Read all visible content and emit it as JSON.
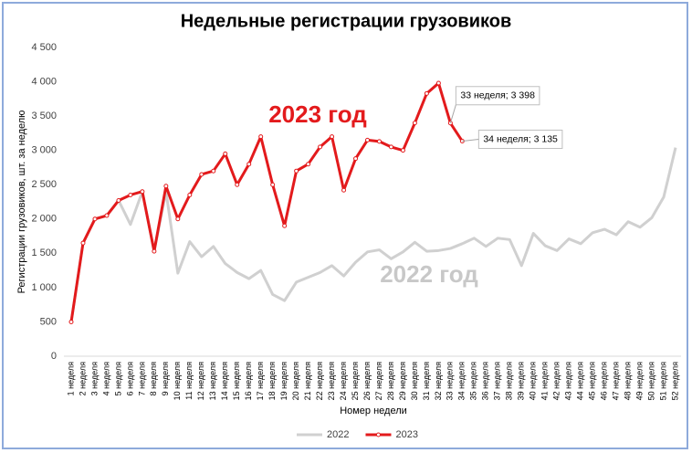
{
  "chart_data": {
    "type": "line",
    "title": "Недельные регистрации грузовиков",
    "y_label": "Регистрации грузовиков, шт. за неделю",
    "x_label": "Номер недели",
    "annotations": [
      {
        "text": "2023 год",
        "color": "#e31a1c"
      },
      {
        "text": "2022 год",
        "color": "#c8c8c8"
      }
    ],
    "categories": [
      "1 неделя",
      "2 неделя",
      "3 неделя",
      "4 неделя",
      "5 неделя",
      "6 неделя",
      "7 неделя",
      "8 неделя",
      "9 неделя",
      "10 неделя",
      "11 неделя",
      "12 неделя",
      "13 неделя",
      "14 неделя",
      "15 неделя",
      "16 неделя",
      "17 неделя",
      "18 неделя",
      "19 неделя",
      "20 неделя",
      "21 неделя",
      "22 неделя",
      "23 неделя",
      "24 неделя",
      "25 неделя",
      "26 неделя",
      "27 неделя",
      "28 неделя",
      "29 неделя",
      "30 неделя",
      "31 неделя",
      "32 неделя",
      "33 неделя",
      "34 неделя",
      "35 неделя",
      "36 неделя",
      "37 неделя",
      "38 неделя",
      "39 неделя",
      "40 неделя",
      "41 неделя",
      "42 неделя",
      "43 неделя",
      "44 неделя",
      "45 неделя",
      "46 неделя",
      "47 неделя",
      "48 неделя",
      "49 неделя",
      "50 неделя",
      "51 неделя",
      "52 неделя"
    ],
    "series": [
      {
        "name": "2022",
        "color": "#d0d0d0",
        "markers": false,
        "values": [
          500,
          1650,
          2000,
          2050,
          2270,
          1920,
          2400,
          1530,
          2400,
          1210,
          1670,
          1450,
          1600,
          1350,
          1220,
          1130,
          1250,
          900,
          810,
          1080,
          1150,
          1220,
          1320,
          1170,
          1370,
          1520,
          1550,
          1420,
          1520,
          1660,
          1530,
          1540,
          1570,
          1640,
          1720,
          1600,
          1720,
          1700,
          1320,
          1790,
          1610,
          1540,
          1710,
          1640,
          1800,
          1850,
          1770,
          1960,
          1880,
          2020,
          2320,
          3040
        ]
      },
      {
        "name": "2023",
        "color": "#e31a1c",
        "markers": true,
        "values": [
          500,
          1650,
          2000,
          2050,
          2270,
          2350,
          2400,
          1530,
          2480,
          2000,
          2350,
          2650,
          2700,
          2950,
          2500,
          2800,
          3200,
          2500,
          1900,
          2700,
          2800,
          3050,
          3200,
          2420,
          2880,
          3150,
          3130,
          3050,
          3000,
          3400,
          3830,
          3980,
          3398,
          3135,
          null,
          null,
          null,
          null,
          null,
          null,
          null,
          null,
          null,
          null,
          null,
          null,
          null,
          null,
          null,
          null,
          null,
          null
        ],
        "value_labels": [
          null,
          null,
          null,
          null,
          null,
          null,
          null,
          null,
          null,
          null,
          null,
          null,
          null,
          null,
          null,
          null,
          null,
          null,
          null,
          null,
          null,
          null,
          null,
          null,
          null,
          null,
          null,
          null,
          null,
          null,
          null,
          null,
          "33 неделя;  3 398",
          "34 неделя;  3 135",
          null,
          null,
          null,
          null,
          null,
          null,
          null,
          null,
          null,
          null,
          null,
          null,
          null,
          null,
          null,
          null,
          null,
          null
        ]
      }
    ],
    "ylim": [
      0,
      4500
    ],
    "yticks": [
      0,
      500,
      {
        "value": 1000,
        "label": "1 000"
      },
      {
        "value": 1500,
        "label": "1 500"
      },
      {
        "value": 2000,
        "label": "2 000"
      },
      {
        "value": 2500,
        "label": "2 500"
      },
      {
        "value": 3000,
        "label": "3 000"
      },
      {
        "value": 3500,
        "label": "3 500"
      },
      {
        "value": 4000,
        "label": "4 000"
      },
      {
        "value": 4500,
        "label": "4 500"
      }
    ],
    "grid": false,
    "legend": "bottom"
  }
}
